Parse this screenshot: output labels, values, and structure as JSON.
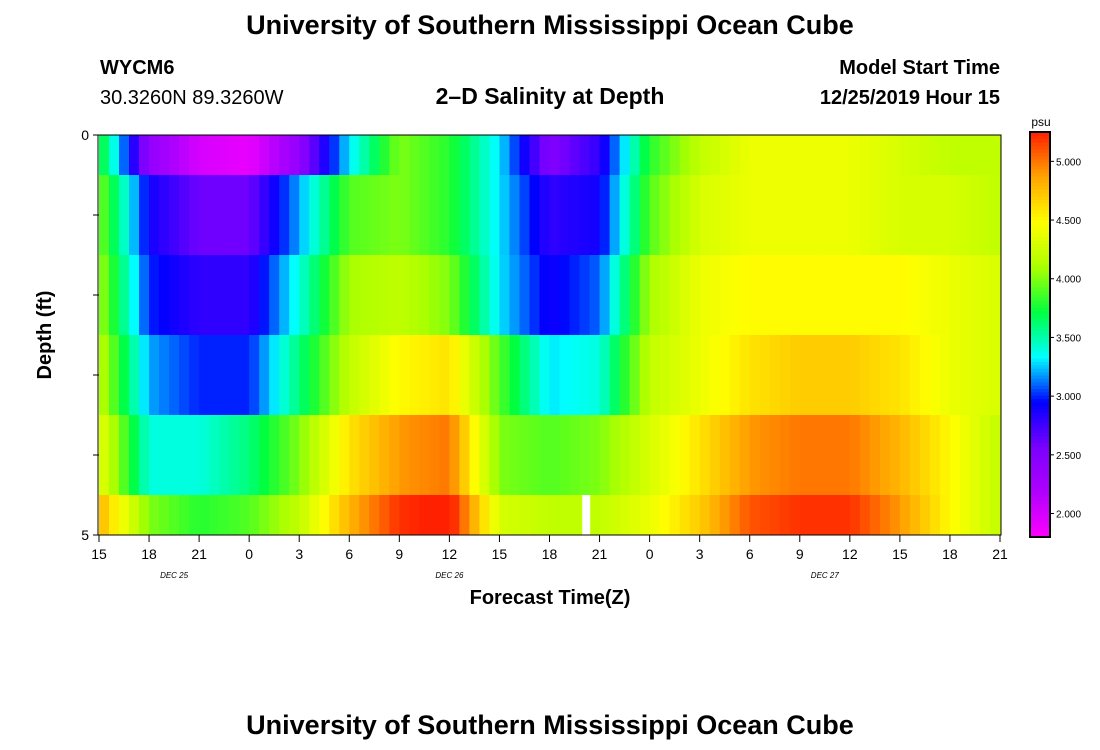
{
  "page": {
    "title": "University of Southern Mississippi Ocean Cube",
    "bottom_title": "University of Southern Mississippi Ocean Cube",
    "station_id": "WYCM6",
    "station_coords": "30.3260N 89.3260W",
    "model_start_label": "Model Start Time",
    "model_start_value": "12/25/2019 Hour 15"
  },
  "chart_data": {
    "type": "heatmap",
    "title": "2–D Salinity at Depth",
    "xlabel": "Forecast Time(Z)",
    "ylabel": "Depth (ft)",
    "y_ticks": [
      "0",
      "5"
    ],
    "ylim": [
      0,
      5
    ],
    "x_tick_labels": [
      "15",
      "18",
      "21",
      "0",
      "3",
      "6",
      "9",
      "12",
      "15",
      "18",
      "21",
      "0",
      "3",
      "6",
      "9",
      "12",
      "15",
      "18",
      "21"
    ],
    "date_labels": [
      {
        "text": "DEC 25",
        "tick_index": 1.5
      },
      {
        "text": "DEC 26",
        "tick_index": 7
      },
      {
        "text": "DEC 27",
        "tick_index": 14.5
      }
    ],
    "colorbar": {
      "unit": "psu",
      "min": 1.8,
      "max": 5.25,
      "tick_values": [
        2.0,
        2.5,
        3.0,
        3.5,
        4.0,
        4.5,
        5.0
      ],
      "tick_labels": [
        "2.000",
        "2.500",
        "3.000",
        "3.500",
        "4.000",
        "4.500",
        "5.000"
      ],
      "colors": [
        "#ff00ff",
        "#b000ff",
        "#7a00ff",
        "#0000ff",
        "#00ffff",
        "#00ff40",
        "#aaff00",
        "#ffff00",
        "#ffa500",
        "#ff2000"
      ]
    },
    "hours_x": [
      0,
      3,
      6,
      9,
      12,
      15,
      18,
      21,
      24,
      27,
      30,
      33,
      36,
      39,
      42,
      45,
      48,
      51,
      54
    ],
    "layers": [
      {
        "depth_range": [
          0,
          0.5
        ],
        "values": [
          3.8,
          2.4,
          2.0,
          1.9,
          2.4,
          3.3,
          4.0,
          3.8,
          3.3,
          2.5,
          2.8,
          3.8,
          4.2,
          4.4,
          4.4,
          4.4,
          4.3,
          4.2,
          4.2
        ]
      },
      {
        "depth_range": [
          0.5,
          1.5
        ],
        "values": [
          4.0,
          2.9,
          2.6,
          2.6,
          3.2,
          3.9,
          4.0,
          3.8,
          3.3,
          2.8,
          2.9,
          3.9,
          4.3,
          4.4,
          4.4,
          4.4,
          4.3,
          4.3,
          4.2
        ]
      },
      {
        "depth_range": [
          1.5,
          2.5
        ],
        "values": [
          4.1,
          3.0,
          2.8,
          2.8,
          3.4,
          4.1,
          4.2,
          4.0,
          3.3,
          2.9,
          3.1,
          4.1,
          4.4,
          4.5,
          4.5,
          4.5,
          4.5,
          4.4,
          4.3
        ]
      },
      {
        "depth_range": [
          2.5,
          3.5
        ],
        "values": [
          4.2,
          3.2,
          3.0,
          3.0,
          3.6,
          4.2,
          4.5,
          4.6,
          3.9,
          3.3,
          3.4,
          4.2,
          4.4,
          4.6,
          4.7,
          4.7,
          4.6,
          4.4,
          4.3
        ]
      },
      {
        "depth_range": [
          3.5,
          4.5
        ],
        "values": [
          4.4,
          3.4,
          3.4,
          3.6,
          4.0,
          4.6,
          4.9,
          5.0,
          4.0,
          3.9,
          4.0,
          4.3,
          4.6,
          4.9,
          5.0,
          5.0,
          4.8,
          4.5,
          4.2
        ]
      },
      {
        "depth_range": [
          4.5,
          5.0
        ],
        "values": [
          4.8,
          4.0,
          3.8,
          3.9,
          4.2,
          4.8,
          5.2,
          5.3,
          4.3,
          4.2,
          4.2,
          4.4,
          4.7,
          5.1,
          5.2,
          5.2,
          4.9,
          4.5,
          4.2
        ]
      }
    ],
    "missing": [
      {
        "hour": 29.2,
        "depth_range": [
          4.5,
          5.0
        ]
      }
    ]
  }
}
